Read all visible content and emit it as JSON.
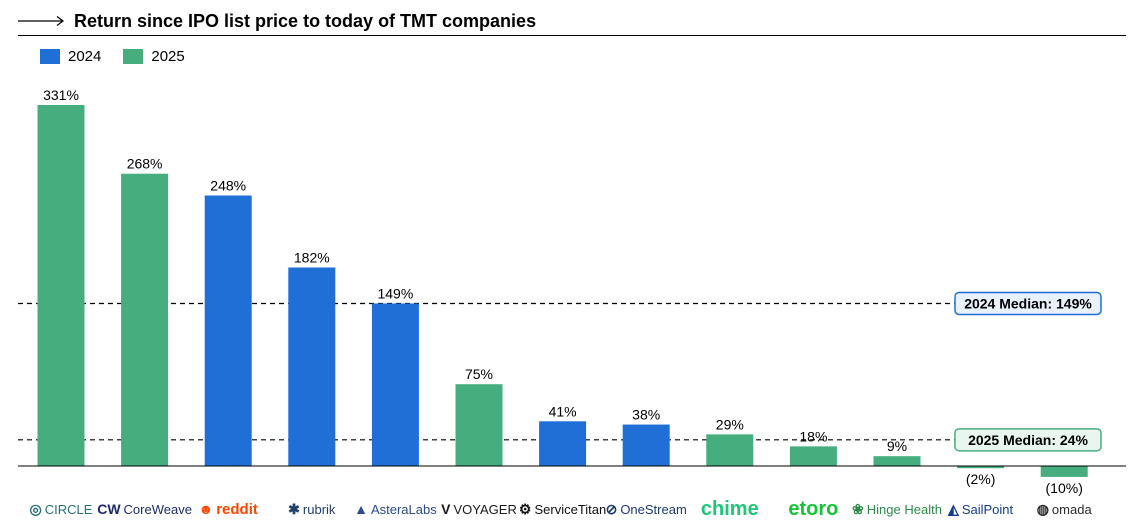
{
  "title": "Return since IPO list price to today of TMT companies",
  "legend": [
    {
      "label": "2024",
      "color": "#1f6fd6"
    },
    {
      "label": "2025",
      "color": "#45ad7e"
    }
  ],
  "chart_data": {
    "type": "bar",
    "title": "Return since IPO list price to today of TMT companies",
    "xlabel": "",
    "ylabel": "",
    "ylim": [
      -12,
      335
    ],
    "categories": [
      "CIRCLE",
      "CoreWeave",
      "reddit",
      "rubrik",
      "AsteraLabs",
      "VOYAGER",
      "ServiceTitan",
      "OneStream",
      "chime",
      "etoro",
      "Hinge Health",
      "SailPoint",
      "omada"
    ],
    "values": [
      331,
      268,
      248,
      182,
      149,
      75,
      41,
      38,
      29,
      18,
      9,
      -2,
      -10
    ],
    "value_labels": [
      "331%",
      "268%",
      "248%",
      "182%",
      "149%",
      "75%",
      "41%",
      "38%",
      "29%",
      "18%",
      "9%",
      "(2%)",
      "(10%)"
    ],
    "years": [
      "2025",
      "2025",
      "2024",
      "2024",
      "2024",
      "2025",
      "2024",
      "2024",
      "2025",
      "2025",
      "2025",
      "2025",
      "2025"
    ],
    "medians": [
      {
        "label": "2024 Median: 149%",
        "value": 149,
        "color": "#1f6fd6",
        "fill": "#e8f1fc"
      },
      {
        "label": "2025 Median: 24%",
        "value": 24,
        "color": "#45ad7e",
        "fill": "#e9f6ef"
      }
    ],
    "grid": false,
    "legend_position": "top-left"
  },
  "logos": [
    {
      "name": "CIRCLE",
      "color": "#2a6f76",
      "icon": "circle-ring-icon",
      "glyph": "◎"
    },
    {
      "name": "CoreWeave",
      "color": "#1d2b6b",
      "icon": "coreweave-icon",
      "glyph": "CW"
    },
    {
      "name": "reddit",
      "color": "#ff4500",
      "icon": "reddit-alien-icon",
      "glyph": "☻"
    },
    {
      "name": "rubrik",
      "color": "#1f3f6e",
      "icon": "rubrik-icon",
      "glyph": "✱"
    },
    {
      "name": "AsteraLabs",
      "color": "#2b4b8c",
      "icon": "astera-icon",
      "glyph": "▲"
    },
    {
      "name": "VOYAGER",
      "color": "#1a1a1a",
      "icon": "voyager-icon",
      "glyph": "V"
    },
    {
      "name": "ServiceTitan",
      "color": "#111111",
      "icon": "servicetitan-icon",
      "glyph": "⚙"
    },
    {
      "name": "OneStream",
      "color": "#1b3b73",
      "icon": "onestream-icon",
      "glyph": "⊘"
    },
    {
      "name": "chime",
      "color": "#1ec677",
      "icon": "chime-icon",
      "glyph": ""
    },
    {
      "name": "etoro",
      "color": "#13c636",
      "icon": "etoro-icon",
      "glyph": ""
    },
    {
      "name": "Hinge Health",
      "color": "#2d8a4a",
      "icon": "hinge-health-icon",
      "glyph": "❀"
    },
    {
      "name": "SailPoint",
      "color": "#0f3d8c",
      "icon": "sailpoint-icon",
      "glyph": "◭"
    },
    {
      "name": "omada",
      "color": "#2b2b2b",
      "icon": "omada-icon",
      "glyph": "◍"
    }
  ]
}
